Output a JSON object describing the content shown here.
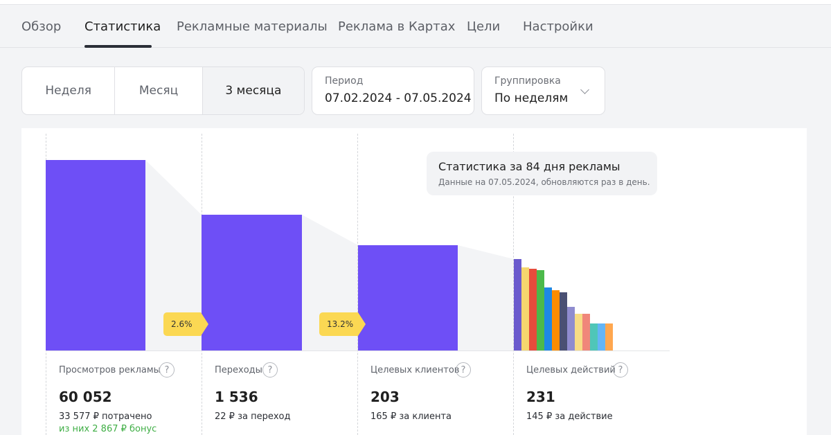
{
  "tabs": [
    {
      "label": "Обзор",
      "active": false
    },
    {
      "label": "Статистика",
      "active": true
    },
    {
      "label": "Рекламные материалы",
      "active": false
    },
    {
      "label": "Реклама в Картах",
      "active": false
    },
    {
      "label": "Цели",
      "active": false
    },
    {
      "label": "Настройки",
      "active": false
    }
  ],
  "period_buttons": [
    {
      "label": "Неделя",
      "active": false
    },
    {
      "label": "Месяц",
      "active": false
    },
    {
      "label": "3 месяца",
      "active": true
    }
  ],
  "period": {
    "label": "Период",
    "value": "07.02.2024 - 07.05.2024"
  },
  "grouping": {
    "label": "Группировка",
    "value": "По неделям"
  },
  "info_box": {
    "title": "Статистика за 84 дня рекламы",
    "subtitle": "Данные на 07.05.2024, обновляются раз в день."
  },
  "conversions": [
    "2.6%",
    "13.2%"
  ],
  "metrics": [
    {
      "label": "Просмотров рекламы",
      "value": "60 052",
      "sub": "33 577 ₽ потрачено",
      "bonus": "из них 2 867 ₽ бонус"
    },
    {
      "label": "Переходы",
      "value": "1 536",
      "sub": "22 ₽ за переход"
    },
    {
      "label": "Целевых клиентов",
      "value": "203",
      "sub": "165 ₽ за клиента"
    },
    {
      "label": "Целевых действий",
      "value": "231",
      "sub": "145 ₽ за действие"
    }
  ],
  "colors": {
    "accent_bar": "#6e4ff6",
    "conversion_badge": "#fbd853",
    "bonus_text": "#3fae45",
    "goal_bars": [
      "#6a5acd",
      "#f5d76e",
      "#e74c3c",
      "#4cb94a",
      "#1e88e5",
      "#fb8c00",
      "#4a5073",
      "#8f8ccf",
      "#f7dc85",
      "#f0877a",
      "#4fc6b8",
      "#64b5f6",
      "#ffa74f"
    ]
  },
  "icons": {
    "help": "question-circle-icon",
    "dropdown": "chevron-down-icon"
  },
  "help_glyph": "?"
}
